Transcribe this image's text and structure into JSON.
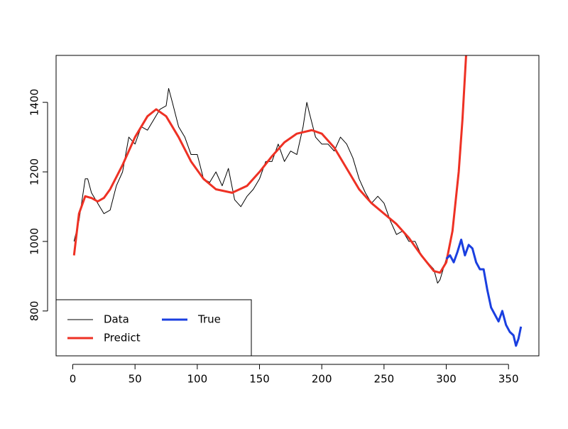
{
  "chart_data": {
    "type": "line",
    "xlim": [
      -13.4,
      374.4
    ],
    "ylim": [
      671,
      1535
    ],
    "xticks": [
      0,
      50,
      100,
      150,
      200,
      250,
      300,
      350
    ],
    "yticks": [
      800,
      1000,
      1200,
      1400
    ],
    "legend": "bottomleft",
    "series": [
      {
        "name": "Data",
        "color": "#000000",
        "width": 1,
        "x": [
          1,
          5,
          10,
          12,
          15,
          20,
          25,
          30,
          35,
          40,
          45,
          50,
          55,
          60,
          65,
          70,
          75,
          77,
          80,
          85,
          90,
          95,
          100,
          105,
          110,
          115,
          120,
          125,
          130,
          135,
          140,
          145,
          150,
          155,
          160,
          165,
          170,
          175,
          180,
          185,
          188,
          190,
          195,
          200,
          205,
          210,
          215,
          220,
          225,
          230,
          235,
          240,
          245,
          250,
          255,
          260,
          265,
          270,
          275,
          280,
          285,
          290,
          293,
          295,
          300
        ],
        "values": [
          1000,
          1060,
          1180,
          1180,
          1140,
          1110,
          1080,
          1090,
          1160,
          1200,
          1300,
          1280,
          1330,
          1320,
          1350,
          1380,
          1390,
          1440,
          1400,
          1330,
          1300,
          1250,
          1250,
          1180,
          1170,
          1200,
          1160,
          1210,
          1120,
          1100,
          1130,
          1150,
          1180,
          1230,
          1230,
          1280,
          1230,
          1260,
          1250,
          1330,
          1400,
          1370,
          1300,
          1280,
          1280,
          1260,
          1300,
          1280,
          1240,
          1180,
          1140,
          1110,
          1130,
          1110,
          1060,
          1020,
          1030,
          1000,
          1000,
          960,
          940,
          920,
          880,
          890,
          950
        ]
      },
      {
        "name": "Predict",
        "color": "#ee3124",
        "width": 3,
        "x": [
          1,
          5,
          10,
          15,
          20,
          25,
          30,
          40,
          50,
          60,
          67,
          75,
          85,
          95,
          105,
          115,
          128,
          140,
          150,
          160,
          170,
          180,
          192,
          200,
          210,
          220,
          230,
          240,
          250,
          260,
          270,
          280,
          290,
          295,
          300,
          305,
          310,
          313,
          316
        ],
        "values": [
          960,
          1080,
          1130,
          1125,
          1115,
          1125,
          1150,
          1220,
          1300,
          1360,
          1380,
          1360,
          1300,
          1230,
          1180,
          1150,
          1140,
          1160,
          1200,
          1245,
          1285,
          1310,
          1320,
          1310,
          1270,
          1210,
          1150,
          1110,
          1080,
          1050,
          1010,
          960,
          915,
          910,
          940,
          1030,
          1200,
          1350,
          1540
        ]
      },
      {
        "name": "True",
        "color": "#1a3fe0",
        "width": 3,
        "x": [
          300,
          303,
          306,
          309,
          312,
          315,
          318,
          321,
          324,
          327,
          330,
          333,
          336,
          339,
          342,
          345,
          348,
          351,
          354,
          356,
          358,
          360
        ],
        "values": [
          950,
          960,
          940,
          970,
          1005,
          960,
          990,
          980,
          940,
          920,
          920,
          860,
          810,
          790,
          770,
          800,
          760,
          740,
          730,
          700,
          720,
          755
        ]
      }
    ]
  }
}
